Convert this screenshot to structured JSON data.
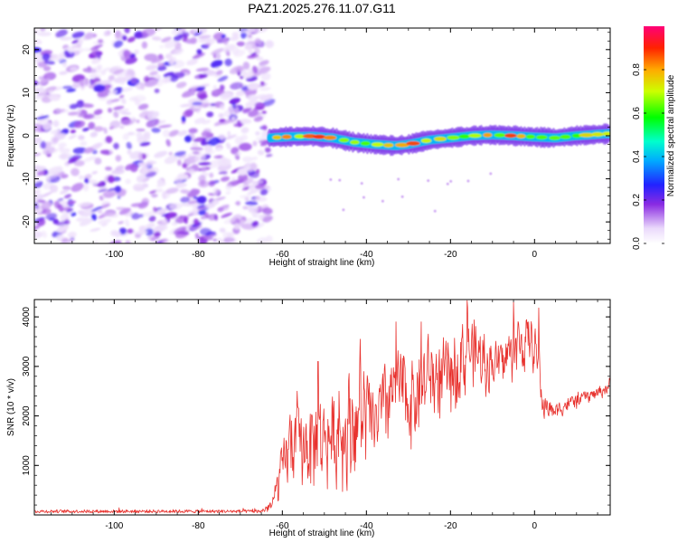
{
  "title": "PAZ1.2025.276.11.07.G11",
  "chart_data": [
    {
      "type": "heatmap",
      "name": "spectrogram",
      "xlabel": "Height of straight line (km)",
      "ylabel": "Frequency (Hz)",
      "xlim": [
        -119,
        18
      ],
      "ylim": [
        -25,
        25
      ],
      "xticks": [
        -100,
        -80,
        -60,
        -40,
        -20,
        0
      ],
      "yticks": [
        -20,
        -10,
        0,
        10,
        20
      ],
      "noise_region": [
        -119,
        -63
      ],
      "signal_track": {
        "x": [
          -63,
          -58,
          -53,
          -48,
          -43,
          -38,
          -33,
          -30,
          -25,
          -20,
          -15,
          -10,
          -5,
          0,
          5,
          10,
          18
        ],
        "freq": [
          -0.5,
          -0.2,
          -0.1,
          -0.5,
          -1.5,
          -2.0,
          -2.3,
          -2.0,
          -1.0,
          -0.5,
          0.0,
          0.2,
          0.0,
          -0.3,
          -0.5,
          0.0,
          0.5
        ]
      },
      "colorbar": {
        "label": "Normalized spectral amplitude",
        "range": [
          0.0,
          1.0
        ],
        "ticks": [
          0.0,
          0.2,
          0.4,
          0.6,
          0.8
        ]
      }
    },
    {
      "type": "line",
      "name": "snr",
      "xlabel": "Height of straight line (km)",
      "ylabel": "SNR (10 * v/v)",
      "xlim": [
        -119,
        18
      ],
      "ylim": [
        0,
        4350
      ],
      "xticks": [
        -100,
        -80,
        -60,
        -40,
        -20,
        0
      ],
      "yticks": [
        1000,
        2000,
        3000,
        4000
      ],
      "color": "#e8322e",
      "envelope": {
        "x": [
          -119,
          -65,
          -62,
          -58,
          -56,
          -52,
          -47,
          -42,
          -38,
          -33,
          -30,
          -25,
          -20,
          -16,
          -12,
          -8,
          -4,
          0,
          2,
          5,
          10,
          15,
          18
        ],
        "low": [
          40,
          40,
          60,
          400,
          300,
          250,
          350,
          300,
          700,
          1300,
          1100,
          1500,
          1800,
          2200,
          2300,
          2400,
          2600,
          2800,
          1800,
          1900,
          2100,
          2300,
          2400
        ],
        "high": [
          150,
          150,
          600,
          2400,
          2200,
          2500,
          2500,
          3500,
          2700,
          3700,
          3300,
          3800,
          3600,
          4300,
          3700,
          3600,
          4100,
          4000,
          2500,
          2300,
          2500,
          2600,
          2800
        ]
      },
      "spikes": [
        {
          "x": -56.5,
          "y": 2500
        },
        {
          "x": -51.5,
          "y": 3100
        },
        {
          "x": -46.5,
          "y": 2500
        },
        {
          "x": -41.5,
          "y": 3550
        },
        {
          "x": -33,
          "y": 3900
        },
        {
          "x": -27,
          "y": 3900
        },
        {
          "x": -16,
          "y": 4330
        },
        {
          "x": -12,
          "y": 3650
        },
        {
          "x": -5,
          "y": 4300
        },
        {
          "x": 1,
          "y": 4180
        }
      ]
    }
  ]
}
